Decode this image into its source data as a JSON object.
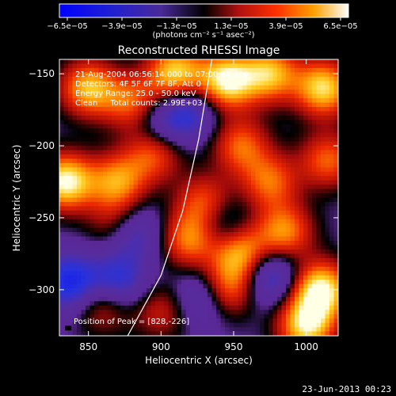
{
  "chart_data": {
    "type": "heatmap",
    "title": "Reconstructed RHESSI Image",
    "xlabel": "Heliocentric X (arcsec)",
    "ylabel": "Heliocentric Y (arcsec)",
    "xlim": [
      830,
      1022
    ],
    "ylim": [
      -332,
      -140
    ],
    "xticks": [
      850,
      900,
      950,
      1000
    ],
    "yticks": [
      -150,
      -200,
      -250,
      -300
    ],
    "colorbar": {
      "range": [
        -6.5e-05,
        6.5e-05
      ],
      "tick_labels": [
        "−6.5e−05",
        "−3.9e−05",
        "−1.3e−05",
        "1.3e−05",
        "3.9e−05",
        "6.5e−05"
      ],
      "unit_label": "(photons cm⁻² s⁻¹ asec⁻²)"
    },
    "annotations": [
      "21-Aug-2004 06:56:14.000 to 07:00:48.000",
      "Detectors: 4F 5F 6F 7F 8F, Att 0",
      "Energy Range: 25.0 - 50.0 keV",
      "Clean     Total counts: 2.99E+03"
    ],
    "peak_label": "Position of Peak = [828,-226]",
    "limb_curve": [
      [
        877,
        -332
      ],
      [
        900,
        -290
      ],
      [
        915,
        -245
      ],
      [
        926,
        -195
      ],
      [
        935,
        -140
      ]
    ],
    "hot_spots": [
      {
        "x": 834,
        "y": -225,
        "s": 1.0
      },
      {
        "x": 850,
        "y": -160,
        "s": 0.8
      },
      {
        "x": 880,
        "y": -170,
        "s": 0.6
      },
      {
        "x": 910,
        "y": -150,
        "s": 0.9
      },
      {
        "x": 945,
        "y": -155,
        "s": 1.0
      },
      {
        "x": 975,
        "y": -150,
        "s": 0.8
      },
      {
        "x": 1012,
        "y": -160,
        "s": 0.9
      },
      {
        "x": 1015,
        "y": -210,
        "s": 0.6
      },
      {
        "x": 1010,
        "y": -300,
        "s": 1.0
      },
      {
        "x": 1000,
        "y": -325,
        "s": 0.9
      },
      {
        "x": 985,
        "y": -260,
        "s": 0.7
      },
      {
        "x": 955,
        "y": -275,
        "s": 0.8
      },
      {
        "x": 945,
        "y": -300,
        "s": 0.7
      },
      {
        "x": 930,
        "y": -240,
        "s": 0.6
      },
      {
        "x": 895,
        "y": -205,
        "s": 0.6
      },
      {
        "x": 870,
        "y": -225,
        "s": 0.7
      },
      {
        "x": 870,
        "y": -255,
        "s": 0.5
      },
      {
        "x": 920,
        "y": -265,
        "s": 0.7
      },
      {
        "x": 975,
        "y": -225,
        "s": 0.6
      },
      {
        "x": 860,
        "y": -310,
        "s": 0.5
      },
      {
        "x": 900,
        "y": -315,
        "s": 0.4
      },
      {
        "x": 955,
        "y": -200,
        "s": 0.6
      }
    ],
    "cold_spots": [
      {
        "x": 838,
        "y": -295,
        "s": 0.7
      },
      {
        "x": 880,
        "y": -260,
        "s": 0.6
      },
      {
        "x": 870,
        "y": -295,
        "s": 0.6
      },
      {
        "x": 930,
        "y": -305,
        "s": 0.5
      },
      {
        "x": 900,
        "y": -185,
        "s": 0.4
      },
      {
        "x": 940,
        "y": -255,
        "s": 0.4
      },
      {
        "x": 975,
        "y": -290,
        "s": 0.6
      },
      {
        "x": 920,
        "y": -175,
        "s": 0.5
      }
    ]
  },
  "footer": {
    "date_stamp": "23-Jun-2013 00:23"
  }
}
